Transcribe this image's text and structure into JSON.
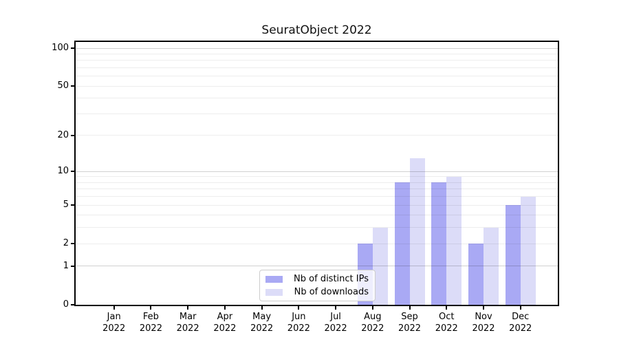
{
  "chart_data": {
    "type": "bar",
    "title": "SeuratObject 2022",
    "categories": [
      "Jan",
      "Feb",
      "Mar",
      "Apr",
      "May",
      "Jun",
      "Jul",
      "Aug",
      "Sep",
      "Oct",
      "Nov",
      "Dec"
    ],
    "year": "2022",
    "series": [
      {
        "name": "Nb of distinct IPs",
        "color": "#a9a9f4",
        "values": [
          0,
          0,
          0,
          0,
          0,
          0,
          0,
          2,
          8,
          8,
          2,
          5
        ]
      },
      {
        "name": "Nb of downloads",
        "color": "#dcdcf8",
        "values": [
          0,
          0,
          0,
          0,
          0,
          0,
          0,
          3,
          13,
          9,
          3,
          6
        ]
      }
    ],
    "xlabel": "",
    "ylabel": "",
    "yscale": "log1p",
    "ylim": [
      0,
      112
    ],
    "y_tick_values": [
      0,
      1,
      2,
      5,
      10,
      20,
      50,
      100
    ],
    "grid_minor_values": [
      1,
      2,
      3,
      4,
      5,
      6,
      7,
      8,
      9,
      10,
      20,
      30,
      40,
      50,
      60,
      70,
      80,
      90,
      100
    ],
    "grid_major_values": [
      1,
      10,
      100
    ],
    "grid": "on",
    "legend_position": "lower center (inside plot)"
  },
  "colors": {
    "background": "#ffffff",
    "axis": "#000000",
    "grid_minor": "#ebebeb",
    "grid_major": "#d2d2d2",
    "legend_border": "#cccccc"
  }
}
